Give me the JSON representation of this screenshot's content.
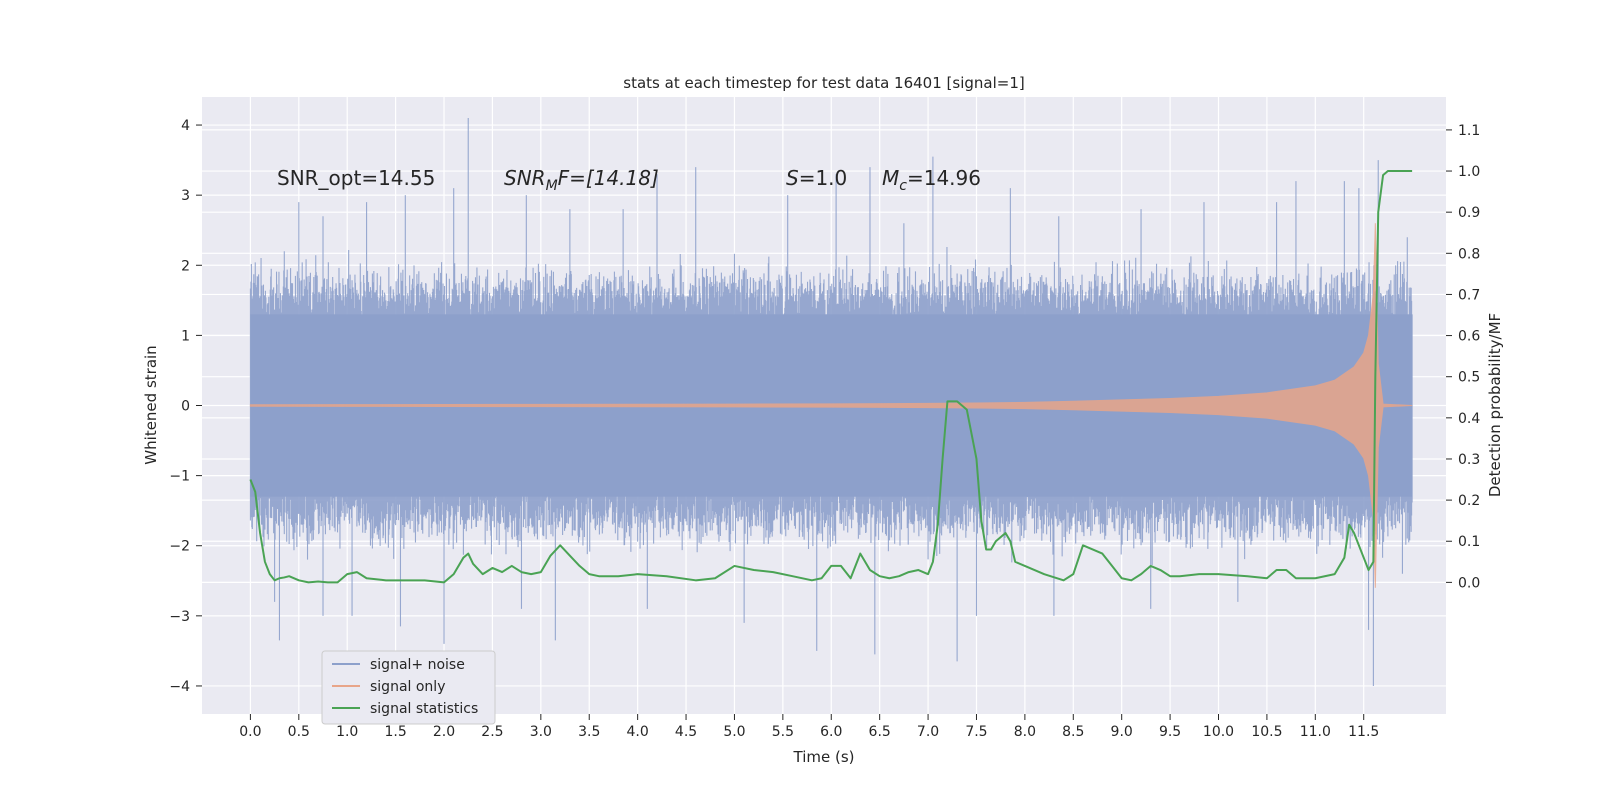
{
  "chart_data": {
    "type": "line",
    "title": "stats at each timestep for test data 16401 [signal=1]",
    "xlabel": "Time (s)",
    "ylabel": "Whitened strain",
    "ylabel_right": "Detection probability/MF",
    "xlim": [
      -0.5,
      12.35
    ],
    "ylim": [
      -4.4,
      4.4
    ],
    "ylim_right": [
      -0.32,
      1.18
    ],
    "x_ticks": [
      "0.0",
      "0.5",
      "1.0",
      "1.5",
      "2.0",
      "2.5",
      "3.0",
      "3.5",
      "4.0",
      "4.5",
      "5.0",
      "5.5",
      "6.0",
      "6.5",
      "7.0",
      "7.5",
      "8.0",
      "8.5",
      "9.0",
      "9.5",
      "10.0",
      "10.5",
      "11.0",
      "11.5"
    ],
    "y_ticks": [
      "4",
      "3",
      "2",
      "1",
      "0",
      "−1",
      "−2",
      "−3",
      "−4"
    ],
    "y_ticks_right": [
      "1.1",
      "1.0",
      "0.9",
      "0.8",
      "0.7",
      "0.6",
      "0.5",
      "0.4",
      "0.3",
      "0.2",
      "0.1",
      "0.0"
    ],
    "grid": true,
    "legend_position": "lower-left",
    "annotations": {
      "snr_opt": "SNR_opt=14.55",
      "snr_mf_sym": "SNR",
      "snr_mf_sub": "M",
      "snr_mf_rest": "F=[14.18]",
      "s_sym": "S",
      "s_rest": "=1.0",
      "mc_sym": "M",
      "mc_sub": "c",
      "mc_rest": "=14.96"
    },
    "series": [
      {
        "name": "signal+ noise",
        "color": "#8da0cb",
        "time_range": [
          0.0,
          12.0
        ],
        "typical_envelope": [
          -1.3,
          1.3
        ],
        "peaks": [
          [
            0.05,
            1.85
          ],
          [
            0.35,
            2.2
          ],
          [
            0.5,
            2.9
          ],
          [
            0.75,
            2.7
          ],
          [
            1.2,
            2.9
          ],
          [
            1.6,
            3.0
          ],
          [
            2.25,
            4.1
          ],
          [
            2.1,
            3.1
          ],
          [
            2.85,
            3.0
          ],
          [
            3.3,
            2.8
          ],
          [
            3.85,
            2.8
          ],
          [
            4.2,
            3.3
          ],
          [
            4.6,
            3.4
          ],
          [
            5.55,
            3.0
          ],
          [
            6.05,
            3.3
          ],
          [
            6.4,
            3.4
          ],
          [
            6.75,
            2.6
          ],
          [
            7.05,
            3.55
          ],
          [
            7.85,
            3.1
          ],
          [
            8.35,
            2.7
          ],
          [
            9.2,
            2.8
          ],
          [
            9.85,
            2.9
          ],
          [
            10.6,
            2.9
          ],
          [
            10.8,
            3.2
          ],
          [
            11.3,
            3.2
          ],
          [
            11.45,
            3.1
          ],
          [
            11.65,
            3.5
          ],
          [
            11.95,
            2.4
          ]
        ],
        "troughs": [
          [
            0.25,
            -2.8
          ],
          [
            0.3,
            -3.35
          ],
          [
            0.75,
            -3.0
          ],
          [
            1.05,
            -3.0
          ],
          [
            1.55,
            -3.15
          ],
          [
            2.0,
            -3.4
          ],
          [
            2.8,
            -2.9
          ],
          [
            3.15,
            -3.35
          ],
          [
            4.1,
            -2.9
          ],
          [
            5.1,
            -3.1
          ],
          [
            5.85,
            -3.5
          ],
          [
            6.45,
            -3.55
          ],
          [
            7.3,
            -3.65
          ],
          [
            7.5,
            -3.0
          ],
          [
            8.3,
            -3.0
          ],
          [
            9.3,
            -2.9
          ],
          [
            10.2,
            -2.8
          ],
          [
            11.55,
            -3.2
          ],
          [
            11.6,
            -4.0
          ],
          [
            11.9,
            -2.4
          ]
        ]
      },
      {
        "name": "signal only",
        "color": "#e8a589",
        "envelope_x": [
          0.0,
          1.0,
          2.0,
          3.0,
          4.0,
          5.0,
          6.0,
          7.0,
          7.5,
          8.0,
          8.5,
          9.0,
          9.5,
          10.0,
          10.5,
          11.0,
          11.2,
          11.4,
          11.5,
          11.55,
          11.6,
          11.62,
          11.65,
          11.7,
          12.0
        ],
        "envelope_y": [
          0.01,
          0.012,
          0.014,
          0.016,
          0.018,
          0.02,
          0.024,
          0.03,
          0.035,
          0.045,
          0.06,
          0.08,
          0.1,
          0.13,
          0.18,
          0.28,
          0.36,
          0.55,
          0.75,
          1.0,
          1.6,
          2.6,
          0.6,
          0.02,
          0.0
        ]
      },
      {
        "name": "signal statistics",
        "color": "#4aa354",
        "x": [
          0.0,
          0.05,
          0.1,
          0.15,
          0.2,
          0.25,
          0.3,
          0.35,
          0.4,
          0.5,
          0.6,
          0.7,
          0.8,
          0.9,
          1.0,
          1.1,
          1.2,
          1.4,
          1.6,
          1.8,
          2.0,
          2.1,
          2.2,
          2.25,
          2.3,
          2.4,
          2.5,
          2.6,
          2.7,
          2.8,
          2.9,
          3.0,
          3.1,
          3.2,
          3.3,
          3.4,
          3.5,
          3.6,
          3.8,
          4.0,
          4.3,
          4.6,
          4.8,
          5.0,
          5.2,
          5.4,
          5.6,
          5.8,
          5.9,
          6.0,
          6.1,
          6.2,
          6.3,
          6.4,
          6.5,
          6.6,
          6.7,
          6.8,
          6.9,
          7.0,
          7.05,
          7.1,
          7.15,
          7.2,
          7.3,
          7.4,
          7.5,
          7.55,
          7.6,
          7.65,
          7.7,
          7.8,
          7.85,
          7.9,
          8.0,
          8.2,
          8.4,
          8.5,
          8.6,
          8.7,
          8.8,
          8.9,
          9.0,
          9.1,
          9.2,
          9.3,
          9.4,
          9.5,
          9.6,
          9.8,
          10.0,
          10.3,
          10.5,
          10.6,
          10.7,
          10.8,
          11.0,
          11.2,
          11.3,
          11.35,
          11.4,
          11.5,
          11.55,
          11.6,
          11.62,
          11.65,
          11.7,
          11.75,
          11.8,
          11.9,
          11.95,
          12.0
        ],
        "y": [
          0.25,
          0.22,
          0.12,
          0.05,
          0.02,
          0.005,
          0.01,
          0.012,
          0.015,
          0.005,
          0.0,
          0.002,
          0.0,
          0.0,
          0.02,
          0.025,
          0.01,
          0.005,
          0.005,
          0.005,
          0.0,
          0.02,
          0.06,
          0.07,
          0.045,
          0.02,
          0.035,
          0.025,
          0.04,
          0.025,
          0.02,
          0.025,
          0.065,
          0.09,
          0.065,
          0.04,
          0.02,
          0.015,
          0.015,
          0.02,
          0.015,
          0.005,
          0.01,
          0.04,
          0.03,
          0.025,
          0.015,
          0.005,
          0.01,
          0.04,
          0.04,
          0.01,
          0.07,
          0.03,
          0.015,
          0.01,
          0.015,
          0.025,
          0.03,
          0.02,
          0.05,
          0.14,
          0.3,
          0.44,
          0.44,
          0.42,
          0.3,
          0.15,
          0.08,
          0.08,
          0.1,
          0.12,
          0.1,
          0.05,
          0.04,
          0.02,
          0.005,
          0.02,
          0.09,
          0.08,
          0.07,
          0.04,
          0.01,
          0.005,
          0.02,
          0.04,
          0.03,
          0.015,
          0.015,
          0.02,
          0.02,
          0.015,
          0.01,
          0.03,
          0.03,
          0.01,
          0.01,
          0.02,
          0.06,
          0.14,
          0.12,
          0.06,
          0.03,
          0.05,
          0.5,
          0.9,
          0.99,
          1.0,
          1.0,
          1.0,
          1.0,
          1.0
        ]
      }
    ]
  }
}
